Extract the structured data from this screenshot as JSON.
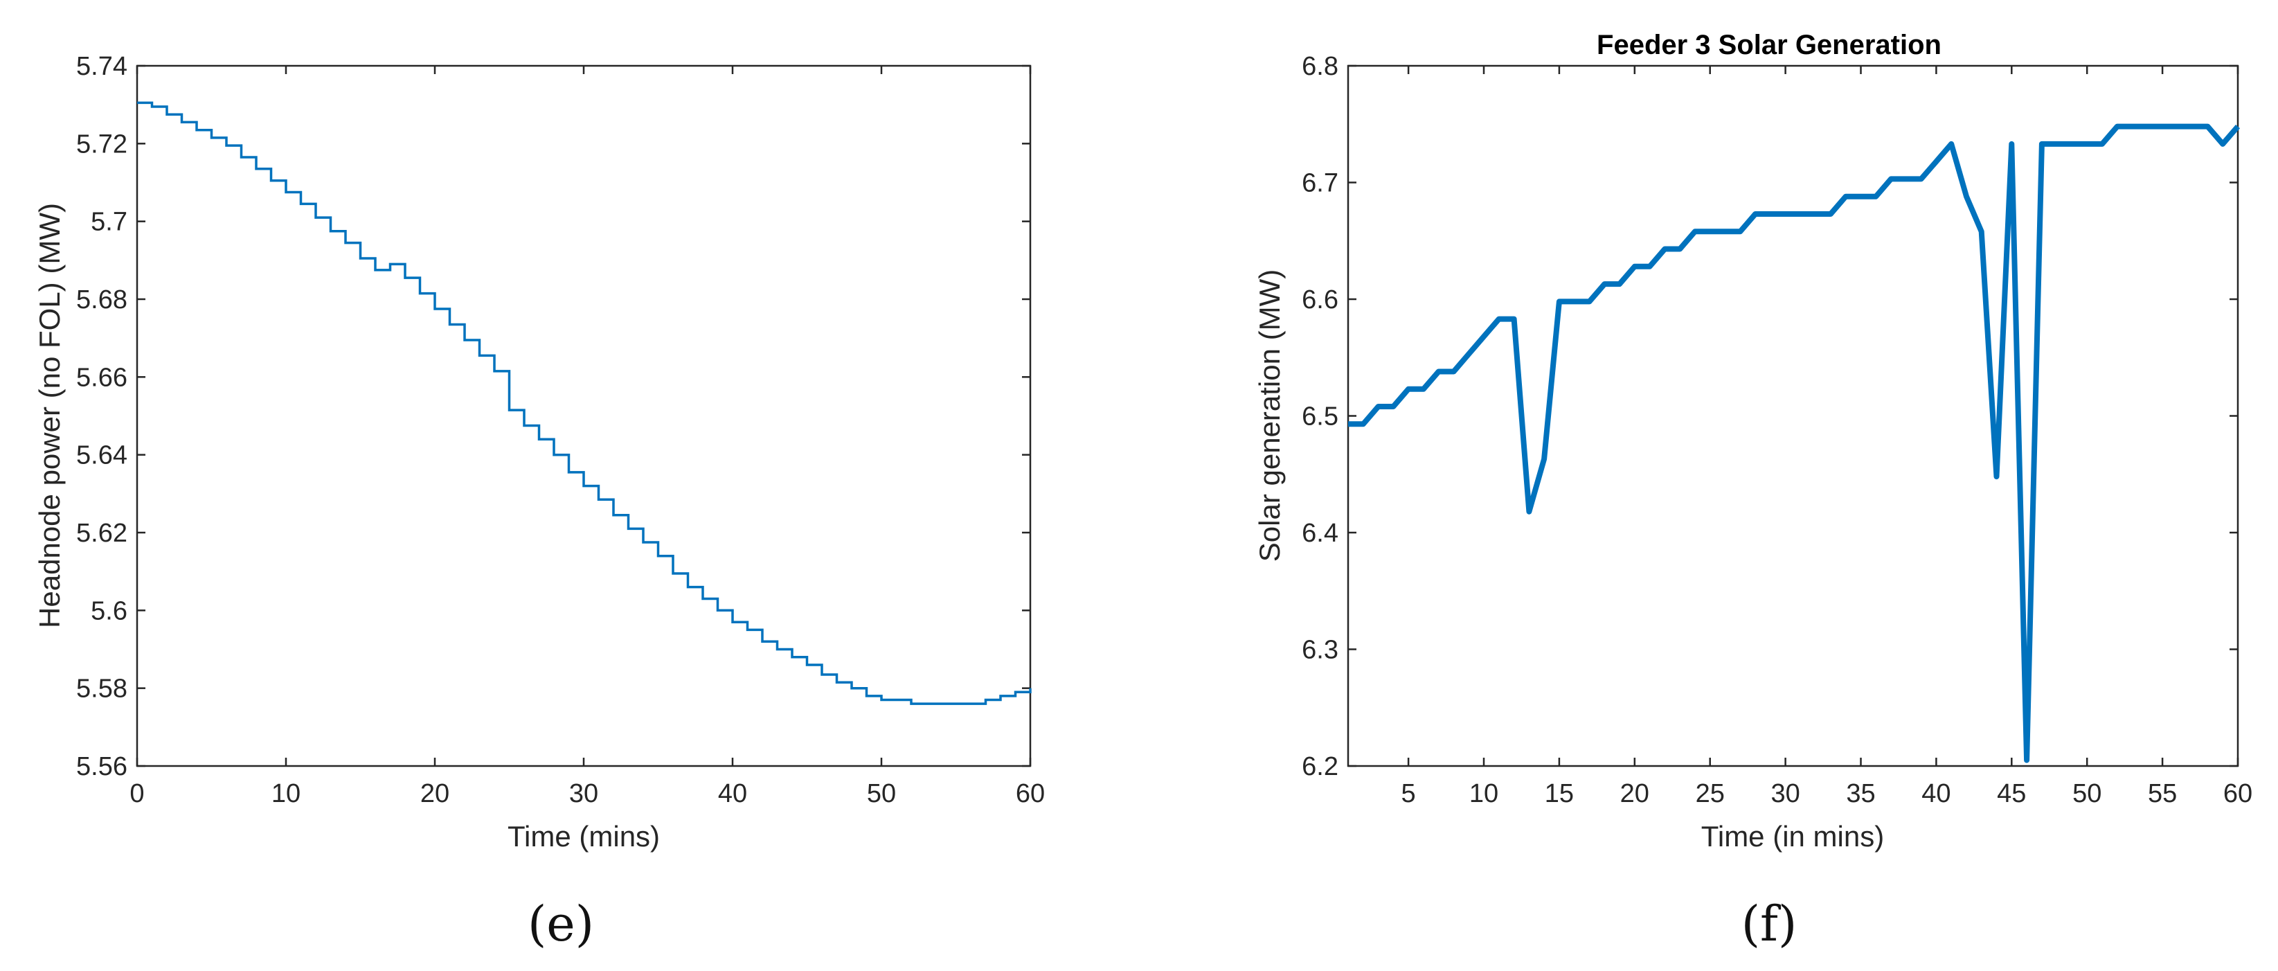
{
  "panels": [
    {
      "label": "(e)"
    },
    {
      "label": "(f)"
    }
  ],
  "chart_data": [
    {
      "type": "line",
      "step": true,
      "title": "",
      "xlabel": "Time (mins)",
      "ylabel": "Headnode power (no FOL) (MW)",
      "xlim": [
        0,
        60
      ],
      "ylim": [
        5.56,
        5.74
      ],
      "xticks": [
        "0",
        "10",
        "20",
        "30",
        "40",
        "50",
        "60"
      ],
      "yticks": [
        "5.56",
        "5.58",
        "5.6",
        "5.62",
        "5.64",
        "5.66",
        "5.68",
        "5.7",
        "5.72",
        "5.74"
      ],
      "grid": false,
      "line_color": "#0072BD",
      "x": [
        0,
        1,
        2,
        3,
        4,
        5,
        6,
        7,
        8,
        9,
        10,
        11,
        12,
        13,
        14,
        15,
        16,
        17,
        18,
        19,
        20,
        21,
        22,
        23,
        24,
        25,
        26,
        27,
        28,
        29,
        30,
        31,
        32,
        33,
        34,
        35,
        36,
        37,
        38,
        39,
        40,
        41,
        42,
        43,
        44,
        45,
        46,
        47,
        48,
        49,
        50,
        51,
        52,
        53,
        54,
        55,
        56,
        57,
        58,
        59,
        60
      ],
      "values": [
        5.7305,
        5.7295,
        5.7275,
        5.7255,
        5.7235,
        5.7215,
        5.7195,
        5.7165,
        5.7135,
        5.7105,
        5.7075,
        5.7045,
        5.701,
        5.6975,
        5.6945,
        5.6905,
        5.6875,
        5.689,
        5.6855,
        5.6815,
        5.6775,
        5.6735,
        5.6695,
        5.6655,
        5.6615,
        5.6515,
        5.6475,
        5.644,
        5.64,
        5.6355,
        5.632,
        5.6285,
        5.6245,
        5.621,
        5.6175,
        5.614,
        5.6095,
        5.606,
        5.603,
        5.6,
        5.597,
        5.595,
        5.592,
        5.59,
        5.588,
        5.586,
        5.5835,
        5.5815,
        5.58,
        5.578,
        5.577,
        5.577,
        5.576,
        5.576,
        5.576,
        5.576,
        5.576,
        5.577,
        5.578,
        5.579,
        5.58
      ]
    },
    {
      "type": "line",
      "title": "Feeder 3 Solar Generation",
      "xlabel": "Time (in mins)",
      "ylabel": "Solar generation (MW)",
      "xlim": [
        1,
        60
      ],
      "ylim": [
        6.2,
        6.8
      ],
      "xticks": [
        "5",
        "10",
        "15",
        "20",
        "25",
        "30",
        "35",
        "40",
        "45",
        "50",
        "55",
        "60"
      ],
      "yticks": [
        "6.2",
        "6.3",
        "6.4",
        "6.5",
        "6.6",
        "6.7",
        "6.8"
      ],
      "grid": false,
      "line_color": "#0072BD",
      "x": [
        1,
        2,
        3,
        4,
        5,
        6,
        7,
        8,
        9,
        10,
        11,
        12,
        13,
        14,
        15,
        16,
        17,
        18,
        19,
        20,
        21,
        22,
        23,
        24,
        25,
        26,
        27,
        28,
        29,
        30,
        31,
        32,
        33,
        34,
        35,
        36,
        37,
        38,
        39,
        40,
        41,
        42,
        43,
        44,
        45,
        46,
        47,
        48,
        49,
        50,
        51,
        52,
        53,
        54,
        55,
        56,
        57,
        58,
        59,
        60
      ],
      "values": [
        6.493,
        6.493,
        6.508,
        6.508,
        6.523,
        6.523,
        6.538,
        6.538,
        6.553,
        6.568,
        6.583,
        6.583,
        6.418,
        6.463,
        6.598,
        6.598,
        6.598,
        6.613,
        6.613,
        6.628,
        6.628,
        6.643,
        6.643,
        6.658,
        6.658,
        6.658,
        6.658,
        6.673,
        6.673,
        6.673,
        6.673,
        6.673,
        6.673,
        6.688,
        6.688,
        6.688,
        6.703,
        6.703,
        6.703,
        6.718,
        6.733,
        6.688,
        6.658,
        6.448,
        6.733,
        6.205,
        6.733,
        6.733,
        6.733,
        6.733,
        6.733,
        6.748,
        6.748,
        6.748,
        6.748,
        6.748,
        6.748,
        6.748,
        6.733,
        6.748
      ]
    }
  ]
}
